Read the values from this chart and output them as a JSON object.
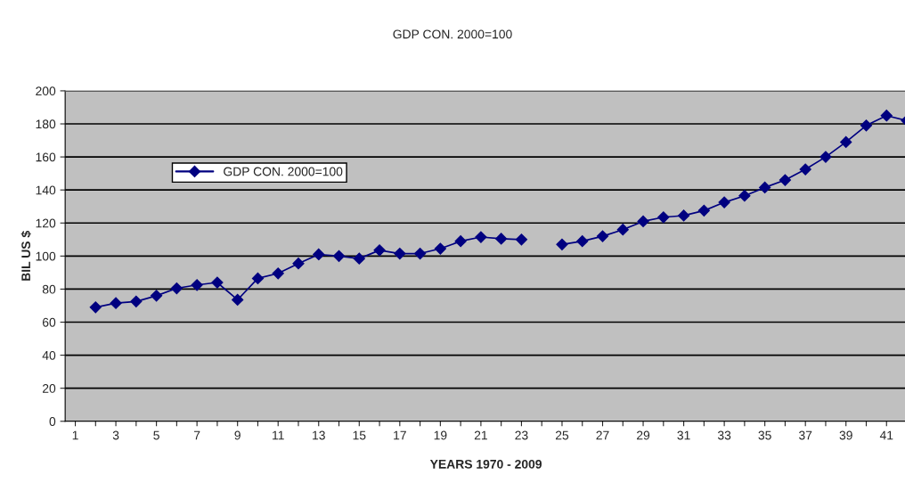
{
  "chart_data": {
    "type": "line",
    "title": "GDP CON. 2000=100",
    "xlabel": "YEARS 1970 - 2009",
    "ylabel": "BIL US $",
    "categories": [
      "1",
      null,
      "3",
      null,
      "5",
      null,
      "7",
      null,
      "9",
      null,
      "11",
      null,
      "13",
      null,
      "15",
      null,
      "17",
      null,
      "19",
      null,
      "21",
      null,
      "23",
      null,
      "25",
      null,
      "27",
      null,
      "29",
      null,
      "31",
      null,
      "33",
      null,
      "35",
      null,
      "37",
      null,
      "39",
      null,
      "41",
      null
    ],
    "series": [
      {
        "name": "GDP CON. 2000=100",
        "color": "#000080",
        "values": [
          null,
          69,
          71.5,
          72.5,
          76,
          80.5,
          82.5,
          84,
          73.5,
          86.5,
          89.5,
          95.5,
          101,
          100,
          98.5,
          103.5,
          101.5,
          101.5,
          104.5,
          109,
          111.5,
          110.5,
          110,
          null,
          107,
          109,
          112,
          116,
          121,
          123.5,
          124.5,
          127.5,
          132.5,
          136.5,
          141.5,
          146,
          152.5,
          160,
          169,
          179,
          185,
          182
        ]
      }
    ],
    "ylim": [
      0,
      200
    ],
    "yticks": [
      0,
      20,
      40,
      60,
      80,
      100,
      120,
      140,
      160,
      180,
      200
    ],
    "grid": "y",
    "legend": "top left",
    "marker": "diamond",
    "line_style": "solid"
  }
}
